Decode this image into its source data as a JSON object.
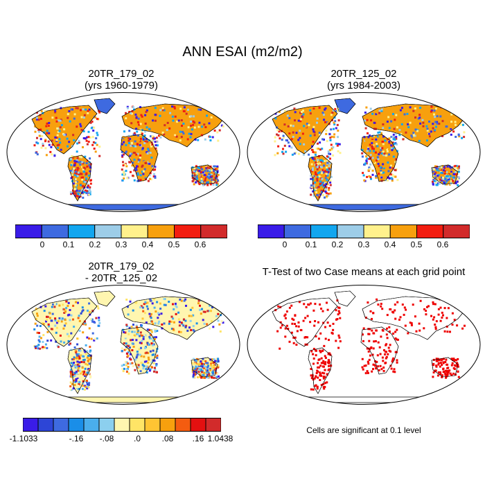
{
  "main_title": "ANN ESAI (m2/m2)",
  "panels": {
    "top_left": {
      "title_line1": "20TR_179_02",
      "title_line2": "(yrs 1960-1979)"
    },
    "top_right": {
      "title_line1": "20TR_125_02",
      "title_line2": "(yrs 1984-2003)"
    },
    "bottom_left": {
      "title_line1": "20TR_179_02",
      "title_line2": "- 20TR_125_02"
    },
    "bottom_right": {
      "title": "T-Test of two Case means at each grid point",
      "note": "Cells are significant at 0.1 level"
    }
  },
  "colorbar_main": {
    "colors": [
      "#3a1ce8",
      "#3e6ae0",
      "#12a6ef",
      "#9dcde8",
      "#fff18c",
      "#f7a00e",
      "#f21d10",
      "#d22b2b"
    ],
    "labels": [
      "0",
      "0.1",
      "0.2",
      "0.3",
      "0.4",
      "0.5",
      "0.6"
    ]
  },
  "colorbar_diff": {
    "colors": [
      "#3a1ce8",
      "#2d45d6",
      "#3e6ae0",
      "#1a8ee8",
      "#4aaeec",
      "#8ccfee",
      "#fff6b0",
      "#ffe466",
      "#ffc433",
      "#f7a00e",
      "#f45c10",
      "#e31010",
      "#d22b2b"
    ],
    "labels": [
      "-1.1033",
      "-.16",
      "-.08",
      ".0",
      ".08",
      ".16",
      "1.0438"
    ]
  },
  "colors": {
    "ocean": "#ffffff",
    "antarctica_main": "#3e6ae0",
    "antarctica_diff": "#fff6b0",
    "ttest_red": "#ee0000",
    "coast": "#000000"
  }
}
